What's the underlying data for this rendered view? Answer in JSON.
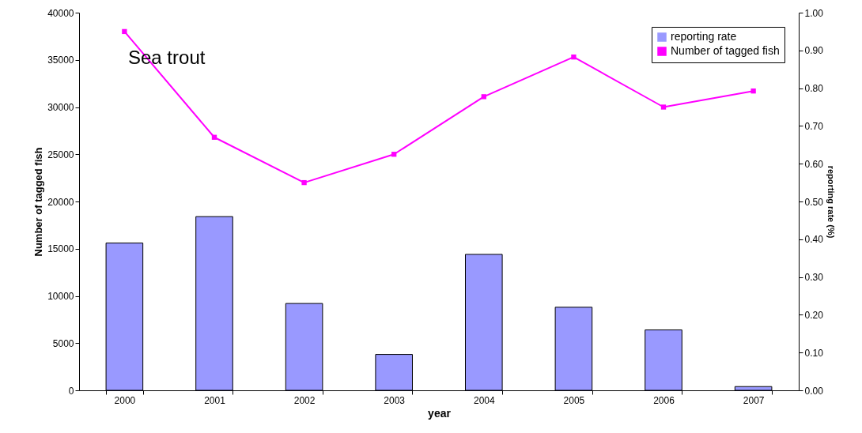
{
  "chart_data": {
    "type": "bar",
    "xlabel": "year",
    "ylabel": "Number of tagged fish",
    "y2label": "reporting rate (%)",
    "annotations": [
      "Sea trout"
    ],
    "categories": [
      "2000",
      "2001",
      "2002",
      "2003",
      "2004",
      "2005",
      "2006",
      "2007"
    ],
    "series": [
      {
        "name": "reporting rate",
        "axis": "y2",
        "color": "#9999ff",
        "values": [
          0.39,
          0.46,
          0.23,
          0.095,
          0.36,
          0.22,
          0.16,
          0.01
        ]
      },
      {
        "name": "Number of tagged fish",
        "type": "line",
        "axis": "y",
        "color": "#ff00ff",
        "values": [
          38000,
          26800,
          22000,
          25000,
          31100,
          35300,
          30000,
          31700
        ]
      }
    ],
    "ylim": [
      0,
      40000
    ],
    "yticks": [
      0,
      5000,
      10000,
      15000,
      20000,
      25000,
      30000,
      35000,
      40000
    ],
    "y2lim": [
      0,
      1
    ],
    "y2ticks": [
      {
        "value": 0,
        "label": "0.00"
      },
      {
        "value": 0.1,
        "label": "0.10"
      },
      {
        "value": 0.2,
        "label": "0.20"
      },
      {
        "value": 0.3,
        "label": "0.30"
      },
      {
        "value": 0.4,
        "label": "0.40"
      },
      {
        "value": 0.5,
        "label": "0.50"
      },
      {
        "value": 0.6,
        "label": "0.60"
      },
      {
        "value": 0.7,
        "label": "0.70"
      },
      {
        "value": 0.8,
        "label": "0.80"
      },
      {
        "value": 0.9,
        "label": "0.90"
      },
      {
        "value": 1,
        "label": "1.00"
      }
    ],
    "marker": "square",
    "legend": "top right",
    "grid": false
  }
}
